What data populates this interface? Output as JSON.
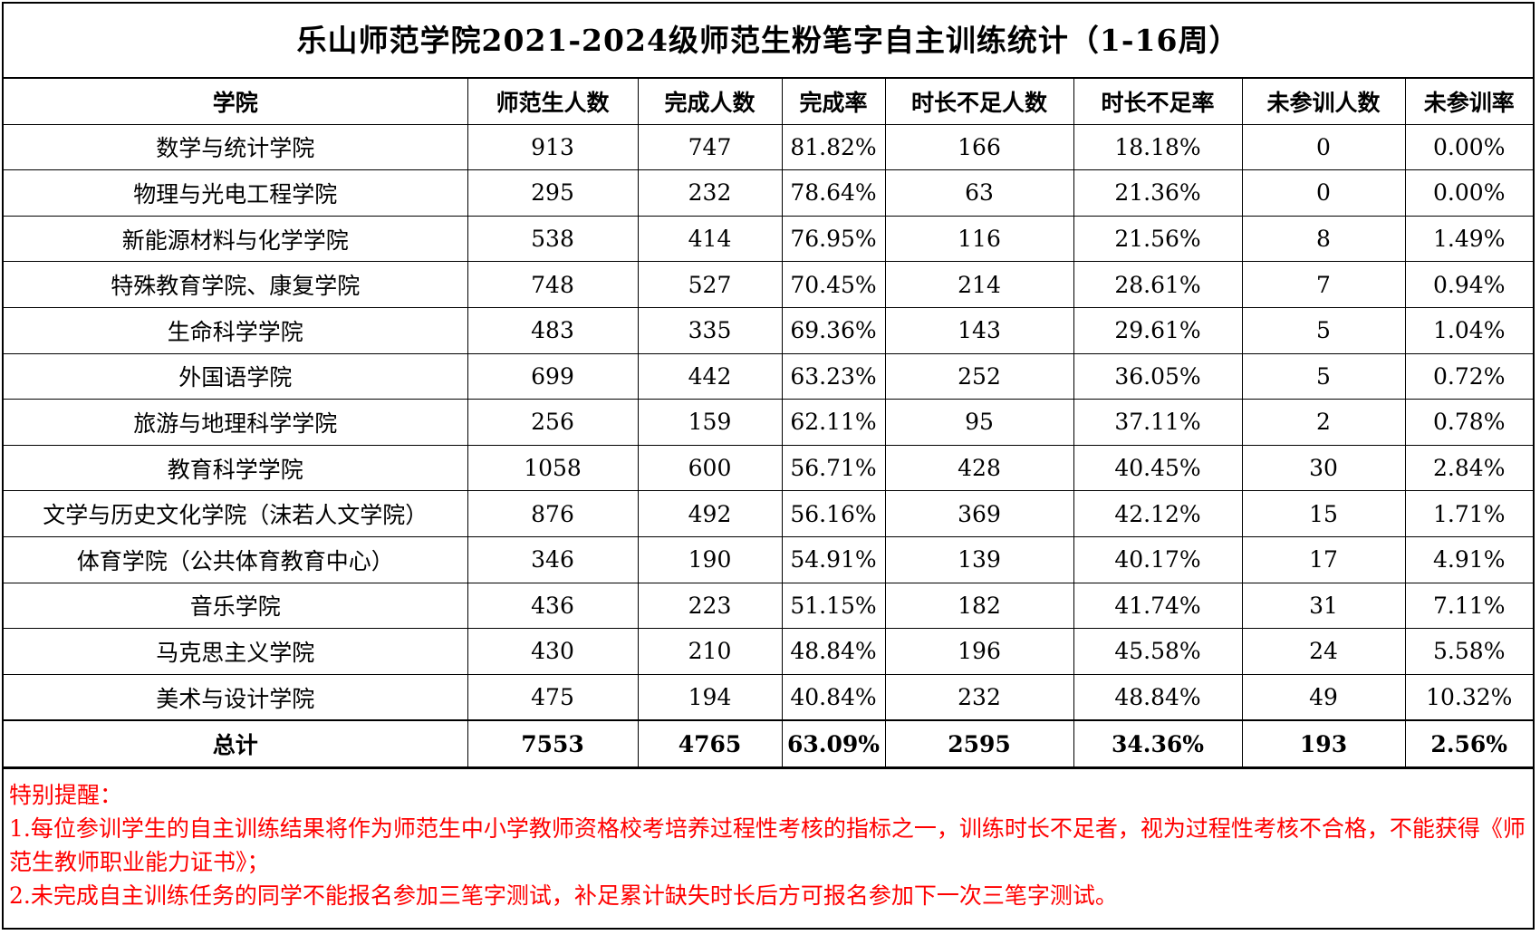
{
  "title": "乐山师范学院2021-2024级师范生粉笔字自主训练统计（1-16周）",
  "headers": [
    "学院",
    "师范生人数",
    "完成人数",
    "完成率",
    "时长不足人数",
    "时长不足率",
    "未参训人数",
    "未参训率"
  ],
  "rows": [
    [
      "数学与统计学院",
      "913",
      "747",
      "81.82%",
      "166",
      "18.18%",
      "0",
      "0.00%"
    ],
    [
      "物理与光电工程学院",
      "295",
      "232",
      "78.64%",
      "63",
      "21.36%",
      "0",
      "0.00%"
    ],
    [
      "新能源材料与化学学院",
      "538",
      "414",
      "76.95%",
      "116",
      "21.56%",
      "8",
      "1.49%"
    ],
    [
      "特殊教育学院、康复学院",
      "748",
      "527",
      "70.45%",
      "214",
      "28.61%",
      "7",
      "0.94%"
    ],
    [
      "生命科学学院",
      "483",
      "335",
      "69.36%",
      "143",
      "29.61%",
      "5",
      "1.04%"
    ],
    [
      "外国语学院",
      "699",
      "442",
      "63.23%",
      "252",
      "36.05%",
      "5",
      "0.72%"
    ],
    [
      "旅游与地理科学学院",
      "256",
      "159",
      "62.11%",
      "95",
      "37.11%",
      "2",
      "0.78%"
    ],
    [
      "教育科学学院",
      "1058",
      "600",
      "56.71%",
      "428",
      "40.45%",
      "30",
      "2.84%"
    ],
    [
      "文学与历史文化学院（沫若人文学院）",
      "876",
      "492",
      "56.16%",
      "369",
      "42.12%",
      "15",
      "1.71%"
    ],
    [
      "体育学院（公共体育教育中心）",
      "346",
      "190",
      "54.91%",
      "139",
      "40.17%",
      "17",
      "4.91%"
    ],
    [
      "音乐学院",
      "436",
      "223",
      "51.15%",
      "182",
      "41.74%",
      "31",
      "7.11%"
    ],
    [
      "马克思主义学院",
      "430",
      "210",
      "48.84%",
      "196",
      "45.58%",
      "24",
      "5.58%"
    ],
    [
      "美术与设计学院",
      "475",
      "194",
      "40.84%",
      "232",
      "48.84%",
      "49",
      "10.32%"
    ]
  ],
  "total": [
    "总计",
    "7553",
    "4765",
    "63.09%",
    "2595",
    "34.36%",
    "193",
    "2.56%"
  ],
  "notes": {
    "heading": "特别提醒：",
    "lines": [
      "1.每位参训学生的自主训练结果将作为师范生中小学教师资格校考培养过程性考核的指标之一，训练时长不足者，视为过程性考核不合格，不能获得《师范生教师职业能力证书》；",
      "2.未完成自主训练任务的同学不能报名参加三笔字测试，补足累计缺失时长后方可报名参加下一次三笔字测试。"
    ]
  },
  "colors": {
    "note_text": "#ff0000",
    "border": "#000000"
  }
}
